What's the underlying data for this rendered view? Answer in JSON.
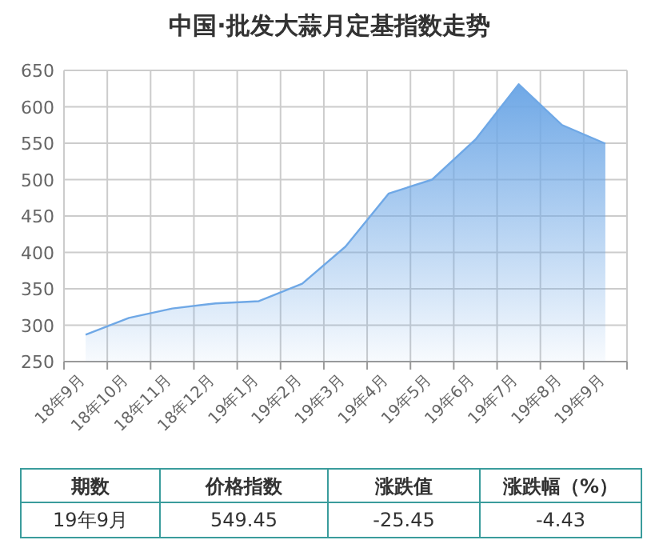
{
  "chart_data": {
    "type": "area",
    "title": "中国·批发大蒜月定基指数走势",
    "categories": [
      "18年9月",
      "18年10月",
      "18年11月",
      "18年12月",
      "19年1月",
      "19年2月",
      "19年3月",
      "19年4月",
      "19年5月",
      "19年6月",
      "19年7月",
      "19年8月",
      "19年9月"
    ],
    "values": [
      287,
      310,
      323,
      330,
      333,
      357,
      408,
      481,
      500,
      555,
      631,
      575,
      549.45
    ],
    "color": "#6fa8e6",
    "ylim": [
      250,
      650
    ],
    "yticks": [
      250,
      300,
      350,
      400,
      450,
      500,
      550,
      600,
      650
    ],
    "grid": true,
    "annotations": [
      "期数",
      "价格指数",
      "涨跌值",
      "涨跌幅（%）",
      "19年9月",
      "549.45",
      "-25.45",
      "-4.43"
    ]
  }
}
